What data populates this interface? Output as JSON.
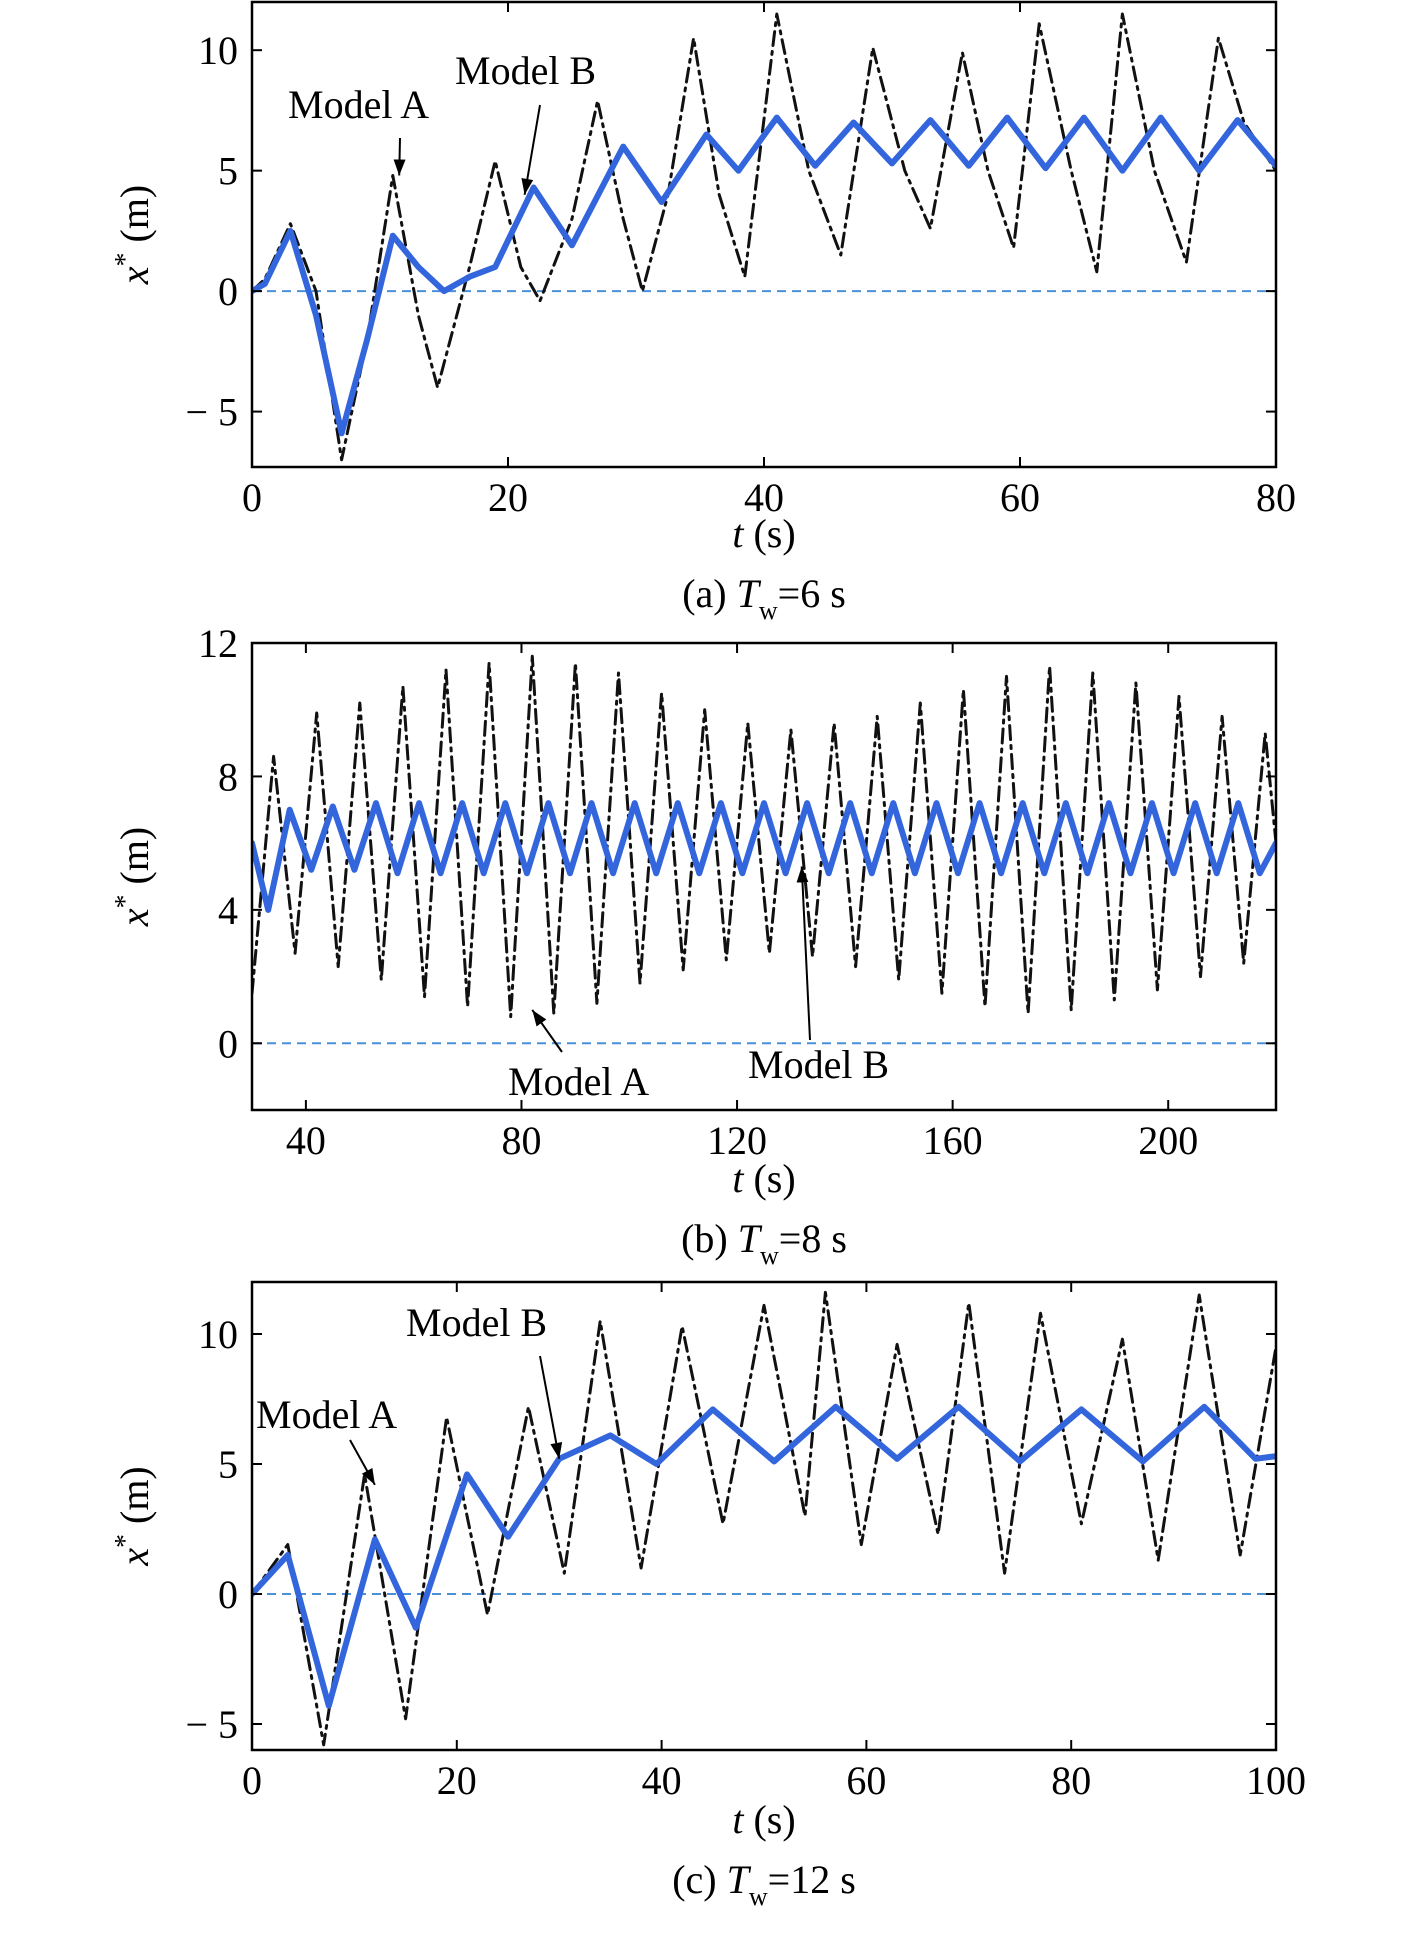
{
  "figure": {
    "colors": {
      "model_a": "#111111",
      "model_b": "#3366dd",
      "zero_line": "#4a90d9",
      "axis": "#000000"
    }
  },
  "chart_data": [
    {
      "panel": "a",
      "type": "line",
      "caption": {
        "prefix": "(a) ",
        "T": "T",
        "sub": "w",
        "suffix": "=6 s"
      },
      "xlabel": {
        "var": "t",
        "unit": " (s)"
      },
      "ylabel": {
        "var": "x",
        "sup": "*",
        "unit": " (m)"
      },
      "xlim": [
        0,
        80
      ],
      "ylim": [
        -7.3,
        12
      ],
      "xticks": [
        0,
        20,
        40,
        60,
        80
      ],
      "yticks": [
        -5,
        0,
        5,
        10
      ],
      "xtick_labels": [
        "0",
        "20",
        "40",
        "60",
        "80"
      ],
      "ytick_labels": [
        "− 5",
        "0",
        "5",
        "10"
      ],
      "series": [
        {
          "name": "Model A",
          "style": "dash-dot",
          "color": "#111111",
          "x": [
            0,
            1,
            3,
            5,
            7,
            9,
            11,
            13,
            14.5,
            17,
            19,
            21,
            22.5,
            25,
            27,
            29,
            30.5,
            32.5,
            34.5,
            36.5,
            38.5,
            41,
            43.5,
            46,
            48.5,
            51,
            53,
            55.5,
            57.5,
            59.5,
            61.5,
            64,
            66,
            68,
            70.5,
            73,
            75.5,
            77.5,
            80
          ],
          "y": [
            0,
            0.5,
            2.8,
            0,
            -7,
            -2,
            4.8,
            -1,
            -4,
            1,
            5.4,
            1,
            -0.4,
            3,
            7.9,
            3,
            0,
            4,
            10.5,
            4,
            0.6,
            11.5,
            5,
            1.5,
            10.1,
            5,
            2.6,
            9.9,
            5,
            1.8,
            11.1,
            5,
            0.8,
            11.5,
            5,
            1.2,
            10.5,
            7,
            5
          ]
        },
        {
          "name": "Model B",
          "style": "solid",
          "color": "#3366dd",
          "x": [
            0,
            1,
            3,
            5,
            7,
            9,
            11,
            13,
            15,
            17,
            19,
            22,
            25,
            29,
            32,
            35.5,
            38,
            41,
            44,
            47,
            50,
            53,
            56,
            59,
            62,
            65,
            68,
            71,
            74,
            77,
            80
          ],
          "y": [
            0,
            0.3,
            2.5,
            -1,
            -5.9,
            -2,
            2.3,
            1,
            0,
            0.6,
            1,
            4.3,
            1.9,
            6,
            3.7,
            6.5,
            5,
            7.2,
            5.2,
            7,
            5.3,
            7.1,
            5.2,
            7.2,
            5.1,
            7.2,
            5,
            7.2,
            5,
            7.1,
            5.2
          ]
        }
      ],
      "annotations": [
        {
          "text": "Model A",
          "tx": 0.35,
          "ty": 0.72
        },
        {
          "text": "Model B",
          "tx": 0.65,
          "ty": 0.76
        }
      ]
    },
    {
      "panel": "b",
      "type": "line",
      "caption": {
        "prefix": "(b) ",
        "T": "T",
        "sub": "w",
        "suffix": "=8 s"
      },
      "xlabel": {
        "var": "t",
        "unit": " (s)"
      },
      "ylabel": {
        "var": "x",
        "sup": "*",
        "unit": " (m)"
      },
      "xlim": [
        30,
        220
      ],
      "ylim": [
        -2,
        12
      ],
      "xticks": [
        40,
        80,
        120,
        160,
        200
      ],
      "yticks": [
        0,
        4,
        8,
        12
      ],
      "xtick_labels": [
        "40",
        "80",
        "120",
        "160",
        "200"
      ],
      "ytick_labels": [
        "0",
        "4",
        "8",
        "12"
      ],
      "series": [
        {
          "name": "Model A",
          "style": "dash-dot",
          "color": "#111111",
          "x": [
            30,
            34,
            38,
            42,
            46,
            50,
            54,
            58,
            62,
            66,
            70,
            74,
            78,
            82,
            86,
            90,
            94,
            98,
            102,
            106,
            110,
            114,
            118,
            122,
            126,
            130,
            134,
            138,
            142,
            146,
            150,
            154,
            158,
            162,
            166,
            170,
            174,
            178,
            182,
            186,
            190,
            194,
            198,
            202,
            206,
            210,
            214,
            218,
            220
          ],
          "y": [
            1.5,
            8.6,
            2.7,
            9.9,
            2.3,
            10.2,
            1.9,
            10.7,
            1.4,
            11.2,
            1.1,
            11.4,
            0.8,
            11.6,
            0.9,
            11.4,
            1.2,
            11.1,
            1.8,
            10.5,
            2.2,
            10.0,
            2.5,
            9.6,
            2.7,
            9.4,
            2.6,
            9.6,
            2.3,
            9.8,
            1.9,
            10.2,
            1.5,
            10.6,
            1.1,
            11.0,
            0.9,
            11.3,
            1.0,
            11.1,
            1.3,
            10.8,
            1.6,
            10.4,
            2.0,
            9.8,
            2.4,
            9.3,
            6
          ]
        },
        {
          "name": "Model B",
          "style": "solid",
          "color": "#3366dd",
          "x": [
            30,
            33,
            37,
            41,
            45,
            49,
            53,
            57,
            61,
            65,
            69,
            73,
            77,
            81,
            85,
            89,
            93,
            97,
            101,
            105,
            109,
            113,
            117,
            121,
            125,
            129,
            133,
            137,
            141,
            145,
            149,
            153,
            157,
            161,
            165,
            169,
            173,
            177,
            181,
            185,
            189,
            193,
            197,
            201,
            205,
            209,
            213,
            217,
            220
          ],
          "y": [
            6,
            4,
            7,
            5.2,
            7.1,
            5.2,
            7.2,
            5.1,
            7.2,
            5.1,
            7.2,
            5.1,
            7.2,
            5.1,
            7.2,
            5.1,
            7.2,
            5.1,
            7.2,
            5.1,
            7.2,
            5.1,
            7.2,
            5.1,
            7.2,
            5.1,
            7.2,
            5.1,
            7.2,
            5.1,
            7.2,
            5.1,
            7.2,
            5.1,
            7.2,
            5.1,
            7.2,
            5.1,
            7.2,
            5.1,
            7.2,
            5.1,
            7.2,
            5.1,
            7.2,
            5.1,
            7.2,
            5.1,
            6
          ]
        }
      ],
      "annotations": [
        {
          "text": "Model A",
          "tx": 0.28,
          "ty": 0.06
        },
        {
          "text": "Model B",
          "tx": 0.52,
          "ty": 0.04
        }
      ]
    },
    {
      "panel": "c",
      "type": "line",
      "caption": {
        "prefix": "(c) ",
        "T": "T",
        "sub": "w",
        "suffix": "=12 s"
      },
      "xlabel": {
        "var": "t",
        "unit": " (s)"
      },
      "ylabel": {
        "var": "x",
        "sup": "*",
        "unit": " (m)"
      },
      "xlim": [
        0,
        100
      ],
      "ylim": [
        -6,
        12
      ],
      "xticks": [
        0,
        20,
        40,
        60,
        80,
        100
      ],
      "yticks": [
        -5,
        0,
        5,
        10
      ],
      "xtick_labels": [
        "0",
        "20",
        "40",
        "60",
        "80",
        "100"
      ],
      "ytick_labels": [
        "− 5",
        "0",
        "5",
        "10"
      ],
      "series": [
        {
          "name": "Model A",
          "style": "dash-dot",
          "color": "#111111",
          "x": [
            0,
            3.5,
            7,
            11,
            15,
            19,
            23,
            27,
            30.5,
            34,
            38,
            42,
            46,
            50,
            54,
            56,
            59.5,
            63,
            67,
            70,
            73.5,
            77,
            81,
            85,
            88.5,
            92.5,
            96.5,
            100
          ],
          "y": [
            0,
            1.9,
            -5.8,
            4.6,
            -4.8,
            6.8,
            -0.8,
            7.2,
            0.8,
            10.5,
            1,
            10.3,
            2.7,
            11.1,
            3,
            11.6,
            1.9,
            9.6,
            2.3,
            11.2,
            0.8,
            10.8,
            2.7,
            9.8,
            1.3,
            11.5,
            1.5,
            9.5
          ]
        },
        {
          "name": "Model B",
          "style": "solid",
          "color": "#3366dd",
          "x": [
            0,
            3.5,
            7.5,
            12,
            16,
            21,
            25,
            30,
            35,
            39.5,
            45,
            51,
            57,
            63,
            69,
            75,
            81,
            87,
            93,
            98,
            100
          ],
          "y": [
            0,
            1.5,
            -4.3,
            2.1,
            -1.3,
            4.6,
            2.2,
            5.2,
            6.1,
            5,
            7.1,
            5.1,
            7.2,
            5.2,
            7.2,
            5.1,
            7.1,
            5.1,
            7.2,
            5.2,
            5.3
          ]
        }
      ],
      "annotations": [
        {
          "text": "Model A",
          "tx": 0.28,
          "ty": 0.78
        },
        {
          "text": "Model B",
          "tx": 0.56,
          "ty": 0.82
        }
      ]
    }
  ]
}
